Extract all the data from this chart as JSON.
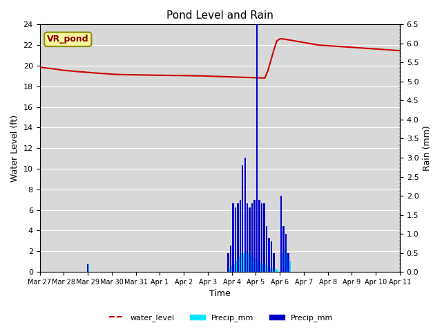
{
  "title": "Pond Level and Rain",
  "xlabel": "Time",
  "ylabel_left": "Water Level (ft)",
  "ylabel_right": "Rain (mm)",
  "annotation": "VR_pond",
  "left_ylim": [
    0,
    24
  ],
  "right_ylim": [
    0.0,
    6.5
  ],
  "left_yticks": [
    0,
    2,
    4,
    6,
    8,
    10,
    12,
    14,
    16,
    18,
    20,
    22,
    24
  ],
  "right_yticks": [
    0.0,
    0.5,
    1.0,
    1.5,
    2.0,
    2.5,
    3.0,
    3.5,
    4.0,
    4.5,
    5.0,
    5.5,
    6.0,
    6.5
  ],
  "background_color": "#d8d8d8",
  "water_level_color": "#cc0000",
  "cyan_bar_color": "#00e5ff",
  "blue_bar_color": "#0000cd",
  "legend_labels": [
    "water_level",
    "Precip_mm",
    "Precip_mm"
  ],
  "xtick_labels": [
    "Mar 27",
    "Mar 28",
    "Mar 29",
    "Mar 30",
    "Mar 31",
    "Apr 1",
    "Apr 2",
    "Apr 3",
    "Apr 4",
    "Apr 5",
    "Apr 6",
    "Apr 7",
    "Apr 8",
    "Apr 9",
    "Apr 10",
    "Apr 11"
  ],
  "num_days": 15,
  "water_level_data": [
    19.85,
    19.82,
    19.78,
    19.75,
    19.72,
    19.68,
    19.63,
    19.59,
    19.55,
    19.52,
    19.5,
    19.47,
    19.44,
    19.42,
    19.4,
    19.38,
    19.35,
    19.33,
    19.3,
    19.28,
    19.26,
    19.24,
    19.22,
    19.2,
    19.18,
    19.16,
    19.15,
    19.14,
    19.13,
    19.13,
    19.12,
    19.12,
    19.11,
    19.11,
    19.1,
    19.1,
    19.09,
    19.09,
    19.08,
    19.08,
    19.07,
    19.07,
    19.06,
    19.06,
    19.05,
    19.05,
    19.05,
    19.04,
    19.04,
    19.03,
    19.03,
    19.02,
    19.02,
    19.01,
    19.01,
    19.0,
    18.99,
    18.98,
    18.97,
    18.96,
    18.95,
    18.94,
    18.93,
    18.92,
    18.91,
    18.9,
    18.89,
    18.88,
    18.87,
    18.86,
    18.85,
    18.84,
    18.83,
    18.82,
    18.81,
    18.8,
    19.5,
    20.5,
    21.5,
    22.4,
    22.6,
    22.6,
    22.55,
    22.5,
    22.45,
    22.4,
    22.35,
    22.3,
    22.25,
    22.2,
    22.15,
    22.1,
    22.05,
    22.0,
    21.98,
    21.96,
    21.94,
    21.92,
    21.9,
    21.88,
    21.86,
    21.84,
    21.82,
    21.8,
    21.78,
    21.76,
    21.74,
    21.72,
    21.7,
    21.68,
    21.66,
    21.64,
    21.62,
    21.6,
    21.58,
    21.56,
    21.54,
    21.52,
    21.5,
    21.48,
    21.46
  ],
  "cyan_precip_bars": [
    {
      "x": 2.0,
      "mm": 0.2
    },
    {
      "x": 7.9,
      "mm": 0.1
    },
    {
      "x": 8.0,
      "mm": 0.15
    },
    {
      "x": 8.1,
      "mm": 0.2
    },
    {
      "x": 8.2,
      "mm": 0.3
    },
    {
      "x": 8.3,
      "mm": 0.4
    },
    {
      "x": 8.4,
      "mm": 0.5
    },
    {
      "x": 8.5,
      "mm": 0.5
    },
    {
      "x": 8.6,
      "mm": 0.55
    },
    {
      "x": 8.7,
      "mm": 0.5
    },
    {
      "x": 8.8,
      "mm": 0.45
    },
    {
      "x": 8.9,
      "mm": 0.4
    },
    {
      "x": 9.0,
      "mm": 0.35
    },
    {
      "x": 9.1,
      "mm": 0.3
    },
    {
      "x": 9.2,
      "mm": 0.25
    },
    {
      "x": 9.3,
      "mm": 0.2
    },
    {
      "x": 9.4,
      "mm": 0.18
    },
    {
      "x": 9.5,
      "mm": 0.15
    },
    {
      "x": 9.6,
      "mm": 0.12
    },
    {
      "x": 9.7,
      "mm": 0.1
    },
    {
      "x": 9.8,
      "mm": 0.08
    },
    {
      "x": 9.9,
      "mm": 0.05
    },
    {
      "x": 10.1,
      "mm": 0.5
    },
    {
      "x": 10.2,
      "mm": 0.6
    },
    {
      "x": 10.3,
      "mm": 0.5
    },
    {
      "x": 10.4,
      "mm": 0.3
    }
  ],
  "blue_precip_bars": [
    {
      "x": 2.0,
      "mm": 0.2
    },
    {
      "x": 7.85,
      "mm": 0.5
    },
    {
      "x": 7.95,
      "mm": 0.7
    },
    {
      "x": 8.05,
      "mm": 1.8
    },
    {
      "x": 8.15,
      "mm": 1.7
    },
    {
      "x": 8.25,
      "mm": 1.8
    },
    {
      "x": 8.35,
      "mm": 1.9
    },
    {
      "x": 8.45,
      "mm": 2.8
    },
    {
      "x": 8.55,
      "mm": 3.0
    },
    {
      "x": 8.65,
      "mm": 1.8
    },
    {
      "x": 8.75,
      "mm": 1.7
    },
    {
      "x": 8.85,
      "mm": 1.8
    },
    {
      "x": 8.95,
      "mm": 1.9
    },
    {
      "x": 9.05,
      "mm": 6.5
    },
    {
      "x": 9.15,
      "mm": 1.9
    },
    {
      "x": 9.25,
      "mm": 1.8
    },
    {
      "x": 9.35,
      "mm": 1.8
    },
    {
      "x": 9.45,
      "mm": 1.2
    },
    {
      "x": 9.55,
      "mm": 0.9
    },
    {
      "x": 9.65,
      "mm": 0.8
    },
    {
      "x": 9.75,
      "mm": 0.5
    },
    {
      "x": 10.05,
      "mm": 2.0
    },
    {
      "x": 10.15,
      "mm": 1.2
    },
    {
      "x": 10.25,
      "mm": 1.0
    },
    {
      "x": 10.35,
      "mm": 0.5
    }
  ]
}
